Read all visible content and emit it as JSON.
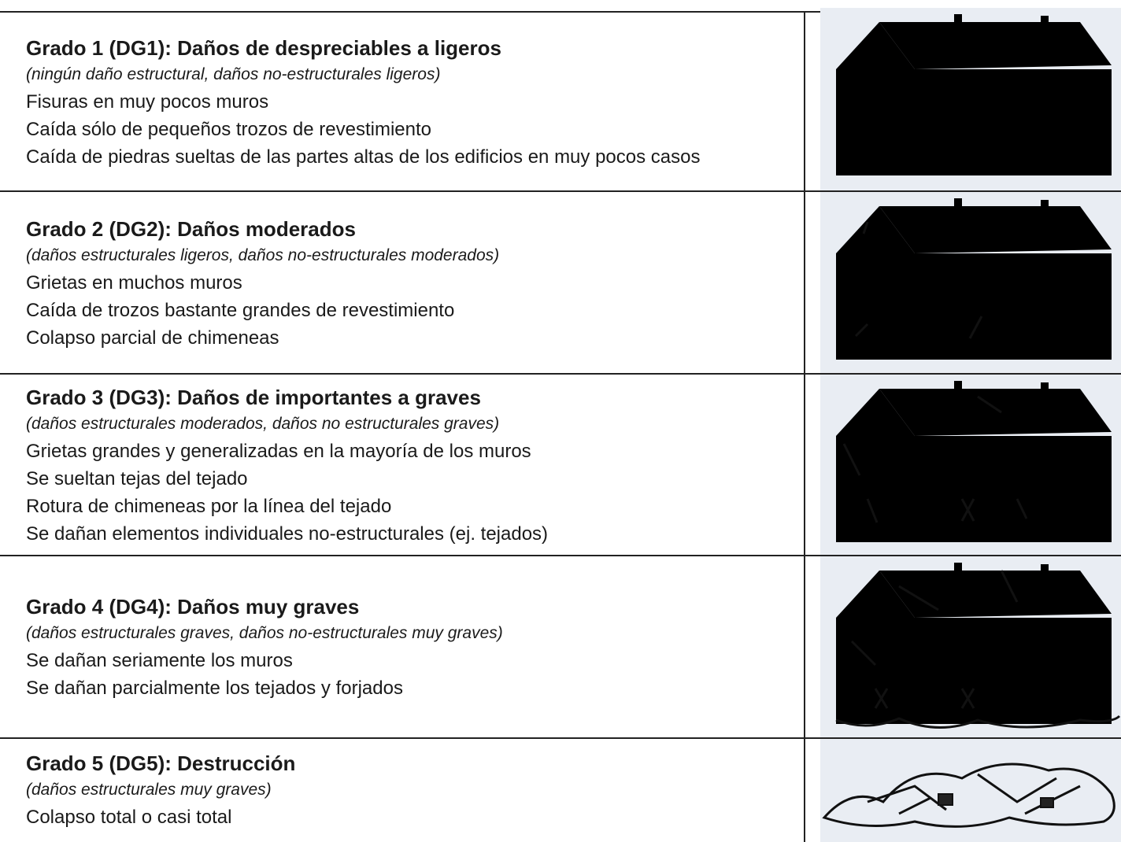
{
  "rows": [
    {
      "title": "Grado 1 (DG1): Daños de despreciables a ligeros",
      "subtitle": "(ningún daño estructural, daños no-estructurales ligeros)",
      "lines": [
        "Fisuras en muy pocos muros",
        "Caída sólo de pequeños trozos de revestimiento",
        "Caída de piedras sueltas de las partes altas de los edificios en muy pocos casos"
      ]
    },
    {
      "title": "Grado 2 (DG2): Daños moderados",
      "subtitle": "(daños estructurales ligeros, daños no-estructurales moderados)",
      "lines": [
        "Grietas en muchos muros",
        "Caída de trozos bastante grandes de revestimiento",
        "Colapso parcial de chimeneas"
      ]
    },
    {
      "title": "Grado 3 (DG3): Daños de importantes a graves",
      "subtitle": "(daños estructurales moderados, daños no estructurales graves)",
      "lines": [
        "Grietas grandes y generalizadas en la mayoría de los muros",
        "Se sueltan tejas del tejado",
        "Rotura de chimeneas por la línea del tejado",
        "Se dañan elementos individuales no-estructurales (ej. tejados)"
      ]
    },
    {
      "title": "Grado 4 (DG4): Daños muy graves",
      "subtitle": "(daños estructurales graves, daños no-estructurales muy graves)",
      "lines": [
        "Se dañan seriamente los muros",
        "Se dañan parcialmente los tejados y forjados"
      ]
    },
    {
      "title": "Grado 5 (DG5): Destrucción",
      "subtitle": "(daños estructurales muy graves)",
      "lines": [
        "Colapso total o casi total"
      ]
    }
  ]
}
